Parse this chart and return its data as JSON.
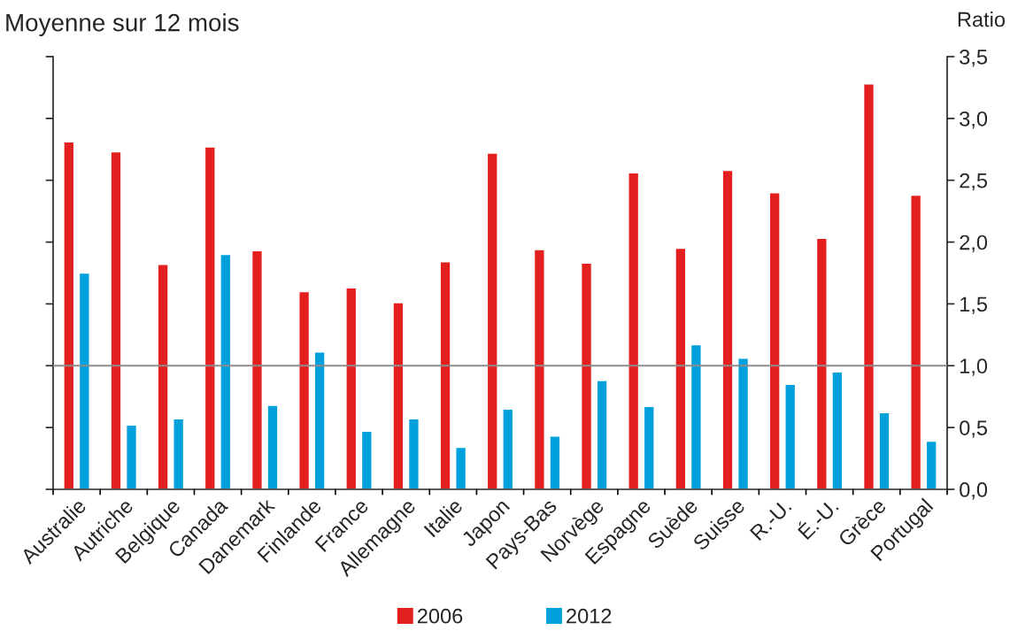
{
  "chart_data": {
    "type": "bar",
    "title": "Moyenne sur 12 mois",
    "ylabel": "Ratio",
    "categories": [
      "Australie",
      "Autriche",
      "Belgique",
      "Canada",
      "Danemark",
      "Finlande",
      "France",
      "Allemagne",
      "Italie",
      "Japon",
      "Pays-Bas",
      "Norvège",
      "Espagne",
      "Suède",
      "Suisse",
      "R.-U.",
      "É.-U.",
      "Grèce",
      "Portugal"
    ],
    "series": [
      {
        "name": "2006",
        "color": "#e3201f",
        "values": [
          2.81,
          2.73,
          1.82,
          2.77,
          1.93,
          1.6,
          1.63,
          1.51,
          1.84,
          2.72,
          1.94,
          1.83,
          2.56,
          1.95,
          2.58,
          2.4,
          2.03,
          3.28,
          2.38
        ]
      },
      {
        "name": "2012",
        "color": "#00a0dc",
        "values": [
          1.75,
          0.52,
          0.57,
          1.9,
          0.68,
          1.11,
          0.47,
          0.57,
          0.34,
          0.65,
          0.43,
          0.88,
          0.67,
          1.17,
          1.06,
          0.85,
          0.95,
          0.62,
          0.39
        ]
      }
    ],
    "ylim": [
      0,
      3.5
    ],
    "yticks": [
      {
        "value": 0,
        "label": "0,0"
      },
      {
        "value": 0.5,
        "label": "0,5"
      },
      {
        "value": 1,
        "label": "1,0"
      },
      {
        "value": 1.5,
        "label": "1,5"
      },
      {
        "value": 2,
        "label": "2,0"
      },
      {
        "value": 2.5,
        "label": "2,5"
      },
      {
        "value": 3,
        "label": "3,0"
      },
      {
        "value": 3.5,
        "label": "3,5"
      }
    ],
    "ref_lines": [
      {
        "axis": "y",
        "value": 1,
        "color": "#8c8c8c"
      }
    ],
    "grid": false,
    "legend": "bottom"
  }
}
